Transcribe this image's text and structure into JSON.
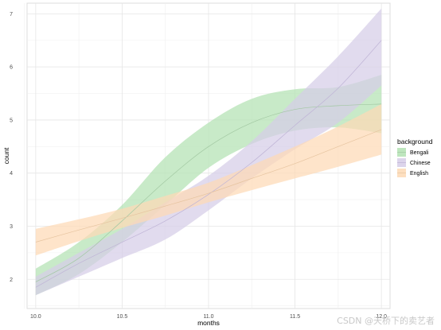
{
  "chart_data": {
    "type": "area",
    "xlabel": "months",
    "ylabel": "count",
    "xlim": [
      9.95,
      12.05
    ],
    "ylim": [
      1.45,
      7.2
    ],
    "xticks": [
      10.0,
      10.5,
      11.0,
      11.5,
      12.0
    ],
    "xtick_labels": [
      "10.0",
      "10.5",
      "11.0",
      "11.5",
      "12.0"
    ],
    "yticks": [
      2,
      3,
      4,
      5,
      6,
      7
    ],
    "ytick_labels": [
      "2",
      "3",
      "4",
      "5",
      "6",
      "7"
    ],
    "grid": true,
    "legend": {
      "title": "background",
      "placement": "right"
    },
    "x": [
      10.0,
      10.25,
      10.5,
      10.75,
      11.0,
      11.25,
      11.5,
      11.75,
      12.0
    ],
    "series": [
      {
        "name": "Bengali",
        "color": "#b3e2b3",
        "line_color": "#a2c8a2",
        "fit": [
          1.95,
          2.4,
          3.1,
          3.85,
          4.5,
          4.95,
          5.2,
          5.27,
          5.3
        ],
        "lower": [
          1.7,
          2.1,
          2.7,
          3.4,
          4.1,
          4.55,
          4.8,
          4.86,
          4.75
        ],
        "upper": [
          2.2,
          2.7,
          3.4,
          4.3,
          4.95,
          5.4,
          5.58,
          5.62,
          5.85
        ]
      },
      {
        "name": "Chinese",
        "color": "#d6cde8",
        "line_color": "#bfb4d6",
        "fit": [
          1.85,
          2.3,
          2.7,
          3.1,
          3.6,
          4.2,
          4.9,
          5.6,
          6.5
        ],
        "lower": [
          1.7,
          2.05,
          2.4,
          2.75,
          3.3,
          3.9,
          4.45,
          4.95,
          5.65
        ],
        "upper": [
          2.05,
          2.5,
          2.95,
          3.45,
          3.95,
          4.6,
          5.4,
          6.2,
          7.1
        ]
      },
      {
        "name": "English",
        "color": "#fdd9b5",
        "line_color": "#e6c4a0",
        "fit": [
          2.7,
          2.93,
          3.15,
          3.38,
          3.62,
          3.9,
          4.18,
          4.5,
          4.82
        ],
        "lower": [
          2.45,
          2.72,
          2.97,
          3.2,
          3.45,
          3.68,
          3.9,
          4.12,
          4.35
        ],
        "upper": [
          2.95,
          3.13,
          3.33,
          3.57,
          3.82,
          4.15,
          4.5,
          4.88,
          5.3
        ]
      }
    ]
  },
  "watermark": "CSDN @天桥下的卖艺者"
}
